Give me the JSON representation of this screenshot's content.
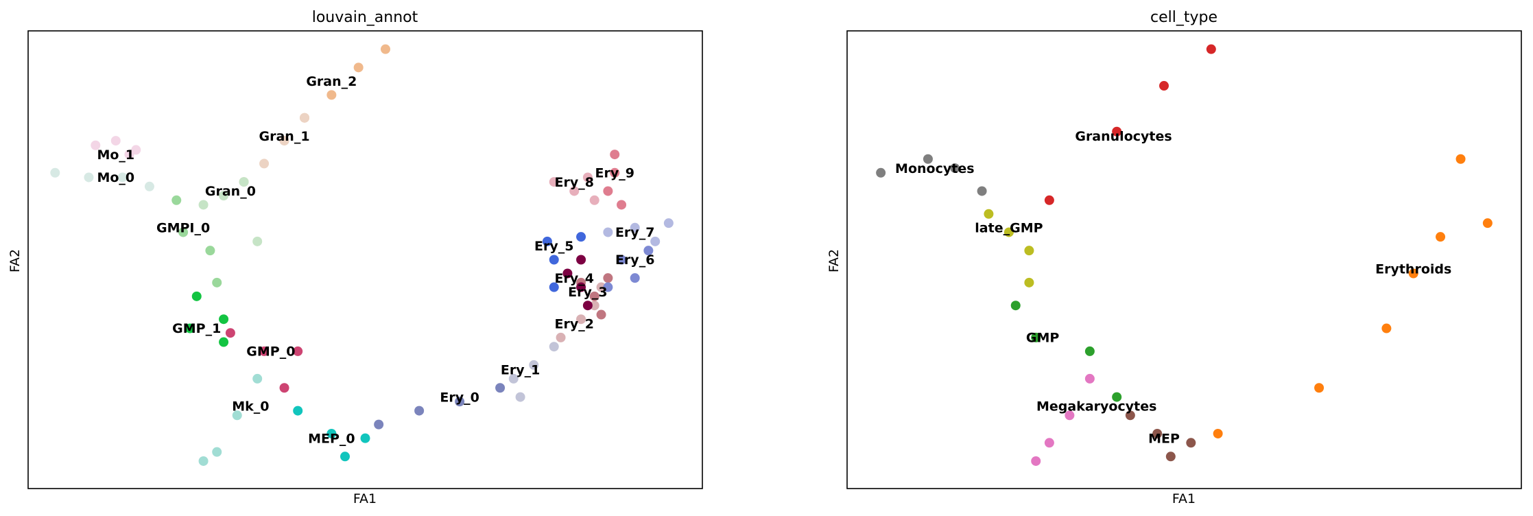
{
  "chart_data": [
    {
      "type": "scatter",
      "title": "louvain_annot",
      "xlabel": "FA1",
      "ylabel": "FA2",
      "ticks": false,
      "xlim": [
        0,
        100
      ],
      "ylim": [
        0,
        100
      ],
      "clusters": [
        {
          "name": "Mo_1",
          "color": "#f3d6e6",
          "label_pos": [
            13,
            72
          ],
          "points": [
            [
              10,
              75
            ],
            [
              13,
              76
            ],
            [
              16,
              74
            ],
            [
              15,
              73
            ]
          ]
        },
        {
          "name": "Mo_0",
          "color": "#d7e9e4",
          "label_pos": [
            13,
            67
          ],
          "points": [
            [
              4,
              69
            ],
            [
              9,
              68
            ],
            [
              14,
              68
            ],
            [
              18,
              66
            ]
          ]
        },
        {
          "name": "Gran_2",
          "color": "#f0b98c",
          "label_pos": [
            45,
            88
          ],
          "points": [
            [
              53,
              96
            ],
            [
              49,
              92
            ],
            [
              45,
              86
            ],
            [
              41,
              81
            ]
          ]
        },
        {
          "name": "Gran_1",
          "color": "#ecd3c3",
          "label_pos": [
            38,
            76
          ],
          "points": [
            [
              41,
              81
            ],
            [
              38,
              76
            ],
            [
              35,
              71
            ],
            [
              32,
              67
            ]
          ]
        },
        {
          "name": "Gran_0",
          "color": "#c6e4c6",
          "label_pos": [
            30,
            64
          ],
          "points": [
            [
              32,
              67
            ],
            [
              29,
              64
            ],
            [
              26,
              62
            ],
            [
              34,
              54
            ]
          ]
        },
        {
          "name": "GMPI_0",
          "color": "#9ad89b",
          "label_pos": [
            23,
            56
          ],
          "points": [
            [
              22,
              63
            ],
            [
              23,
              56
            ],
            [
              27,
              52
            ],
            [
              28,
              45
            ]
          ]
        },
        {
          "name": "GMP_1",
          "color": "#13c442",
          "label_pos": [
            25,
            34
          ],
          "points": [
            [
              25,
              42
            ],
            [
              24,
              35
            ],
            [
              29,
              32
            ],
            [
              29,
              37
            ]
          ]
        },
        {
          "name": "GMP_0",
          "color": "#cd4472",
          "label_pos": [
            36,
            29
          ],
          "points": [
            [
              30,
              34
            ],
            [
              35,
              30
            ],
            [
              40,
              30
            ],
            [
              38,
              22
            ]
          ]
        },
        {
          "name": "Mk_0",
          "color": "#a1ddd4",
          "label_pos": [
            33,
            17
          ],
          "points": [
            [
              34,
              24
            ],
            [
              31,
              16
            ],
            [
              28,
              8
            ],
            [
              26,
              6
            ]
          ]
        },
        {
          "name": "MEP_0",
          "color": "#11c5bd",
          "label_pos": [
            45,
            10
          ],
          "points": [
            [
              40,
              17
            ],
            [
              45,
              12
            ],
            [
              47,
              7
            ],
            [
              50,
              11
            ]
          ]
        },
        {
          "name": "Ery_0",
          "color": "#7b84bc",
          "label_pos": [
            64,
            19
          ],
          "points": [
            [
              52,
              14
            ],
            [
              58,
              17
            ],
            [
              64,
              19
            ],
            [
              70,
              22
            ]
          ]
        },
        {
          "name": "Ery_1",
          "color": "#c2c4d8",
          "label_pos": [
            73,
            25
          ],
          "points": [
            [
              72,
              24
            ],
            [
              75,
              27
            ],
            [
              78,
              31
            ],
            [
              73,
              20
            ]
          ]
        },
        {
          "name": "Ery_2",
          "color": "#d9b1b4",
          "label_pos": [
            81,
            35
          ],
          "points": [
            [
              79,
              33
            ],
            [
              82,
              37
            ],
            [
              84,
              40
            ],
            [
              85,
              44
            ]
          ]
        },
        {
          "name": "Ery_3",
          "color": "#c07680",
          "label_pos": [
            83,
            42
          ],
          "points": [
            [
              82,
              45
            ],
            [
              84,
              42
            ],
            [
              85,
              38
            ],
            [
              86,
              46
            ]
          ]
        },
        {
          "name": "Ery_4",
          "color": "#7c0042",
          "label_pos": [
            81,
            45
          ],
          "points": [
            [
              80,
              47
            ],
            [
              82,
              44
            ],
            [
              83,
              40
            ],
            [
              82,
              50
            ]
          ]
        },
        {
          "name": "Ery_5",
          "color": "#4067dc",
          "label_pos": [
            78,
            52
          ],
          "points": [
            [
              77,
              54
            ],
            [
              78,
              50
            ],
            [
              78,
              44
            ],
            [
              82,
              55
            ]
          ]
        },
        {
          "name": "Ery_6",
          "color": "#7d89d3",
          "label_pos": [
            90,
            49
          ],
          "points": [
            [
              88,
              50
            ],
            [
              90,
              46
            ],
            [
              92,
              52
            ],
            [
              86,
              44
            ]
          ]
        },
        {
          "name": "Ery_7",
          "color": "#b3b9e1",
          "label_pos": [
            90,
            55
          ],
          "points": [
            [
              86,
              56
            ],
            [
              90,
              57
            ],
            [
              95,
              58
            ],
            [
              93,
              54
            ]
          ]
        },
        {
          "name": "Ery_8",
          "color": "#e7afbb",
          "label_pos": [
            81,
            66
          ],
          "points": [
            [
              78,
              67
            ],
            [
              81,
              65
            ],
            [
              84,
              63
            ],
            [
              83,
              68
            ]
          ]
        },
        {
          "name": "Ery_9",
          "color": "#df7d8f",
          "label_pos": [
            87,
            68
          ],
          "points": [
            [
              86,
              65
            ],
            [
              87,
              69
            ],
            [
              87,
              73
            ],
            [
              88,
              62
            ]
          ]
        }
      ]
    },
    {
      "type": "scatter",
      "title": "cell_type",
      "xlabel": "FA1",
      "ylabel": "FA2",
      "ticks": false,
      "xlim": [
        0,
        100
      ],
      "ylim": [
        0,
        100
      ],
      "clusters": [
        {
          "name": "Monocytes",
          "color": "#7f7f7f",
          "label_pos": [
            13,
            69
          ],
          "points": [
            [
              5,
              69
            ],
            [
              12,
              72
            ],
            [
              16,
              70
            ],
            [
              20,
              65
            ]
          ]
        },
        {
          "name": "Granulocytes",
          "color": "#d62728",
          "label_pos": [
            41,
            76
          ],
          "points": [
            [
              54,
              96
            ],
            [
              47,
              88
            ],
            [
              40,
              78
            ],
            [
              30,
              63
            ]
          ]
        },
        {
          "name": "late_GMP",
          "color": "#bcbd22",
          "label_pos": [
            24,
            56
          ],
          "points": [
            [
              21,
              60
            ],
            [
              24,
              56
            ],
            [
              27,
              52
            ],
            [
              27,
              45
            ]
          ]
        },
        {
          "name": "GMP",
          "color": "#2ca02c",
          "label_pos": [
            29,
            32
          ],
          "points": [
            [
              25,
              40
            ],
            [
              28,
              33
            ],
            [
              36,
              30
            ],
            [
              40,
              20
            ]
          ]
        },
        {
          "name": "Megakaryocytes",
          "color": "#e377c2",
          "label_pos": [
            37,
            17
          ],
          "points": [
            [
              36,
              24
            ],
            [
              33,
              16
            ],
            [
              30,
              10
            ],
            [
              28,
              6
            ]
          ]
        },
        {
          "name": "MEP",
          "color": "#8c564b",
          "label_pos": [
            47,
            10
          ],
          "points": [
            [
              42,
              16
            ],
            [
              46,
              12
            ],
            [
              48,
              7
            ],
            [
              51,
              10
            ]
          ]
        },
        {
          "name": "Erythroids",
          "color": "#ff7f0e",
          "label_pos": [
            84,
            47
          ],
          "points": [
            [
              55,
              12
            ],
            [
              70,
              22
            ],
            [
              80,
              35
            ],
            [
              84,
              47
            ],
            [
              88,
              55
            ],
            [
              95,
              58
            ],
            [
              91,
              72
            ]
          ]
        }
      ]
    }
  ]
}
